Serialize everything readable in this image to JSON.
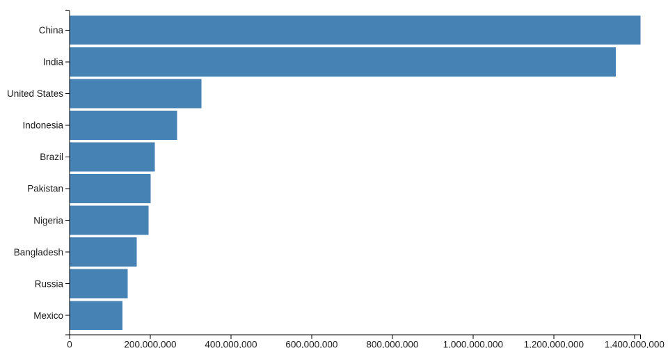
{
  "chart_data": {
    "type": "bar",
    "orientation": "horizontal",
    "title": "",
    "xlabel": "",
    "ylabel": "",
    "categories": [
      "China",
      "India",
      "United States",
      "Indonesia",
      "Brazil",
      "Pakistan",
      "Nigeria",
      "Bangladesh",
      "Russia",
      "Mexico"
    ],
    "values": [
      1415045928,
      1354051854,
      326766748,
      266794980,
      210867954,
      200813818,
      195875237,
      166368149,
      143964709,
      130759074
    ],
    "xlim": [
      0,
      1415045928
    ],
    "x_ticks": [
      0,
      200000000,
      400000000,
      600000000,
      800000000,
      1000000000,
      1200000000,
      1400000000
    ],
    "x_tick_labels": [
      "0",
      "200,000,000",
      "400,000,000",
      "600,000,000",
      "800,000,000",
      "1,000,000,000",
      "1,200,000,000",
      "1,400,000,000"
    ],
    "grid": false,
    "legend": null,
    "bar_color": "#4682b4",
    "axis_color": "#000000",
    "text_color": "#1a1a1a"
  }
}
